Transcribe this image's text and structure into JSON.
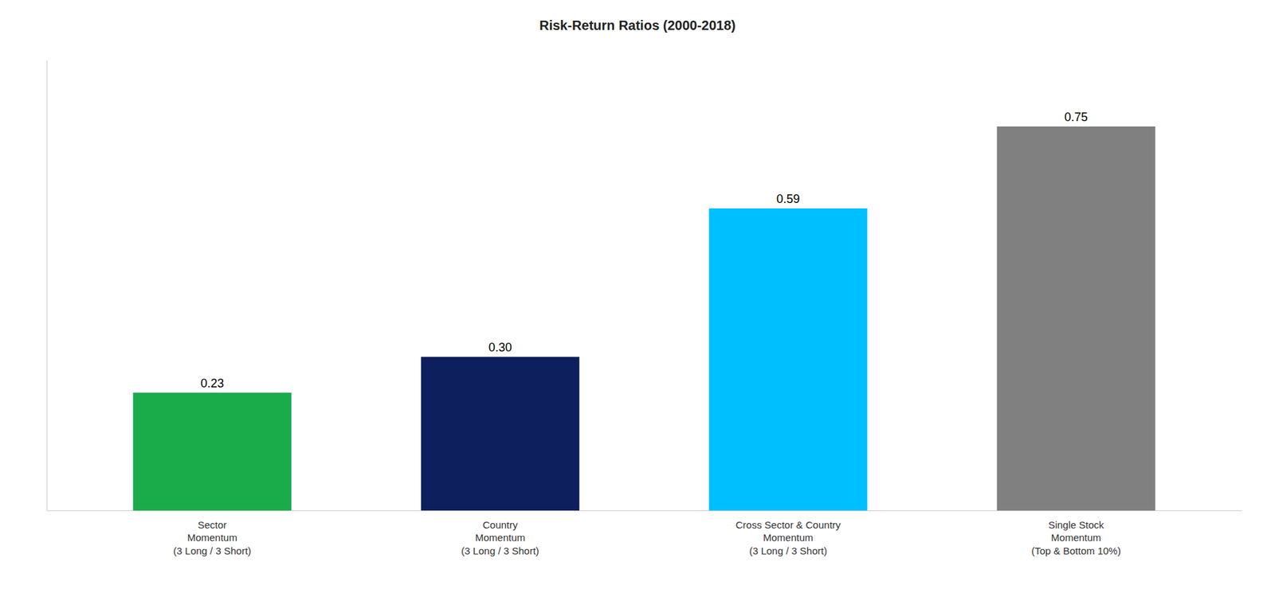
{
  "chart_data": {
    "type": "bar",
    "title": "Risk-Return Ratios (2000-2018)",
    "categories": [
      "Sector\nMomentum\n(3 Long / 3 Short)",
      "Country\nMomentum\n(3 Long / 3 Short)",
      "Cross Sector & Country\nMomentum\n(3 Long / 3 Short)",
      "Single Stock\nMomentum\n(Top & Bottom 10%)"
    ],
    "values": [
      0.23,
      0.3,
      0.59,
      0.75
    ],
    "value_labels": [
      "0.23",
      "0.30",
      "0.59",
      "0.75"
    ],
    "colors": [
      "#1aab4b",
      "#0d1f5c",
      "#00bfff",
      "#808080"
    ],
    "ylim": [
      0,
      0.88
    ],
    "data_labels": true,
    "tick_labels": "x",
    "grid": false
  }
}
